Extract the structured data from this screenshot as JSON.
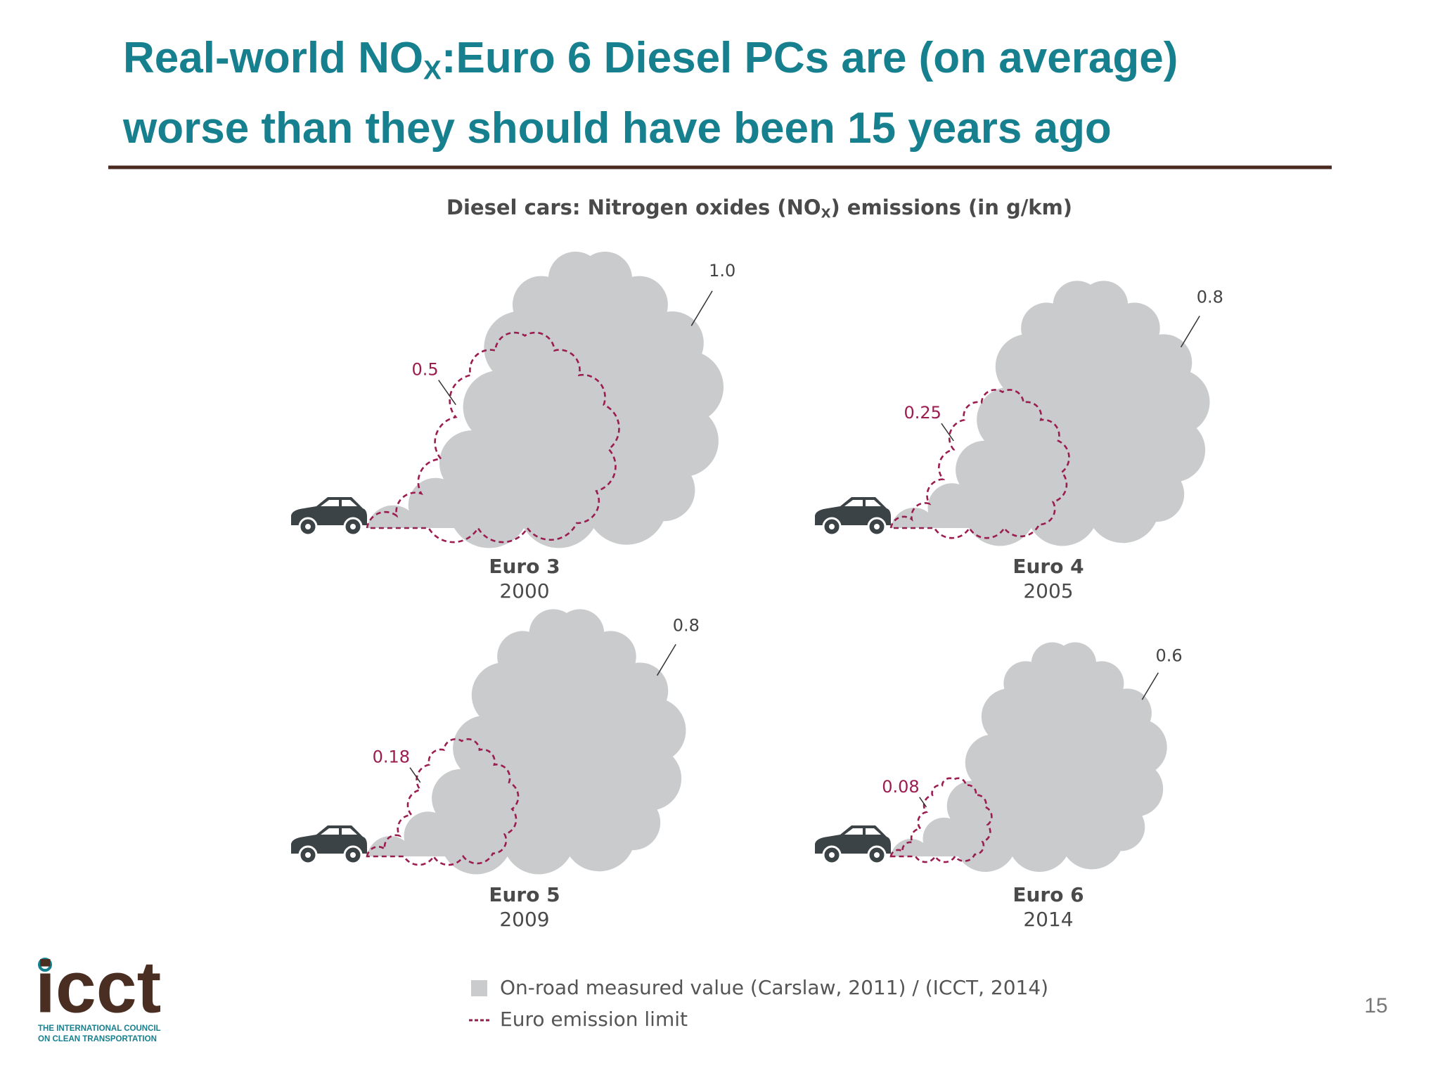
{
  "slide": {
    "title": [
      "Real-world NO",
      "X",
      ":Euro 6 Diesel PCs are (on average)",
      "worse than they should have been 15 years ago"
    ],
    "page_number": "15",
    "logo": {
      "name": "icct",
      "lines": [
        "THE INTERNATIONAL COUNCIL",
        "ON CLEAN TRANSPORTATION"
      ]
    }
  },
  "chart_data": {
    "type": "cloud",
    "title": [
      "Diesel cars: Nitrogen oxides (NO",
      "X",
      ") emissions (in g/km)"
    ],
    "categories": [
      "Euro 3",
      "Euro 4",
      "Euro 5",
      "Euro 6"
    ],
    "years": [
      "2000",
      "2005",
      "2009",
      "2014"
    ],
    "series": [
      {
        "name": "On-road measured value (Carslaw, 2011) / (ICCT, 2014)",
        "color": "#c9cbcc",
        "values": [
          1.0,
          0.8,
          0.8,
          0.6
        ],
        "value_labels": [
          "1.0",
          "0.8",
          "0.8",
          "0.6"
        ]
      },
      {
        "name": "Euro emission limit",
        "color": "#9b1d50",
        "values": [
          0.5,
          0.25,
          0.18,
          0.08
        ]
      }
    ]
  }
}
